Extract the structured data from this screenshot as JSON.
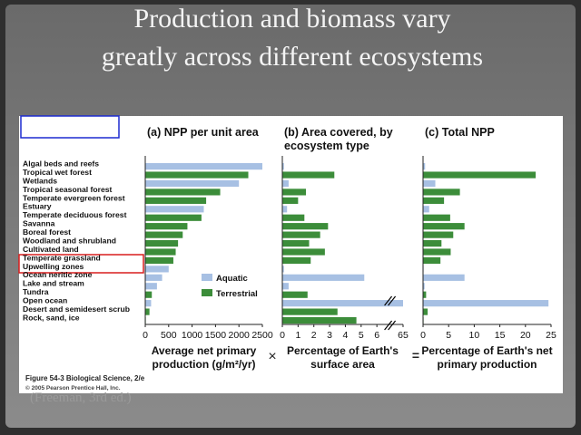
{
  "slide": {
    "title": "Production and biomass vary greatly across different ecosystems",
    "source": "(Freeman, 3rd ed.)"
  },
  "figure": {
    "credit": [
      "Figure 54-3 Biological Science, 2/e",
      "© 2005 Pearson Prentice Hall, Inc."
    ],
    "operators": [
      "×",
      "="
    ]
  },
  "chart_data": [
    {
      "type": "bar",
      "orientation": "horizontal",
      "title": [
        "(a) NPP per unit area"
      ],
      "categories": [
        "Algal beds and reefs",
        "Tropical wet forest",
        "Wetlands",
        "Tropical seasonal forest",
        "Temperate evergreen forest",
        "Estuary",
        "Temperate deciduous forest",
        "Savanna",
        "Boreal forest",
        "Woodland and shrubland",
        "Cultivated land",
        "Temperate grassland",
        "Upwelling zones",
        "Ocean neritic zone",
        "Lake and stream",
        "Tundra",
        "Open ocean",
        "Desert and semidesert scrub",
        "Rock, sand, ice"
      ],
      "colors": [
        "#a7c0e3",
        "#3c8d3a",
        "#a7c0e3",
        "#3c8d3a",
        "#3c8d3a",
        "#a7c0e3",
        "#3c8d3a",
        "#3c8d3a",
        "#3c8d3a",
        "#3c8d3a",
        "#3c8d3a",
        "#3c8d3a",
        "#a7c0e3",
        "#a7c0e3",
        "#a7c0e3",
        "#3c8d3a",
        "#a7c0e3",
        "#3c8d3a",
        "#3c8d3a"
      ],
      "legend": [
        {
          "name": "Aquatic",
          "color": "#a7c0e3"
        },
        {
          "name": "Terrestrial",
          "color": "#3c8d3a"
        }
      ],
      "values": [
        2500,
        2200,
        2000,
        1600,
        1300,
        1250,
        1200,
        900,
        800,
        700,
        650,
        600,
        500,
        360,
        250,
        140,
        125,
        90,
        3
      ],
      "xlim": [
        0,
        2500
      ],
      "xticks": [
        0,
        500,
        1000,
        1500,
        2000,
        2500
      ],
      "xlabel": [
        "Average net primary",
        "production (g/m²/yr)"
      ]
    },
    {
      "type": "bar",
      "orientation": "horizontal",
      "title": [
        "(b) Area covered, by",
        "ecosystem type"
      ],
      "values": [
        0.1,
        3.3,
        0.4,
        1.5,
        1.0,
        0.3,
        1.4,
        2.9,
        2.4,
        1.7,
        2.7,
        1.8,
        0.1,
        5.2,
        0.4,
        1.6,
        65,
        3.5,
        4.7
      ],
      "xlim": [
        0,
        65
      ],
      "axis_break": [
        6.6,
        64.4
      ],
      "xticks": [
        0,
        1,
        2,
        3,
        4,
        5,
        6,
        65
      ],
      "xlabel": [
        "Percentage of Earth's",
        "surface area"
      ]
    },
    {
      "type": "bar",
      "orientation": "horizontal",
      "title": [
        "(c) Total NPP"
      ],
      "values": [
        0.4,
        22,
        2.4,
        7.2,
        4.1,
        1.2,
        5.3,
        8.1,
        5.9,
        3.6,
        5.4,
        3.4,
        0.1,
        8.1,
        0.3,
        0.6,
        24.5,
        0.9,
        0.04
      ],
      "xlim": [
        0,
        25
      ],
      "xticks": [
        0,
        5,
        10,
        15,
        20,
        25
      ],
      "xlabel": [
        "Percentage of Earth's net",
        "primary production"
      ]
    }
  ]
}
